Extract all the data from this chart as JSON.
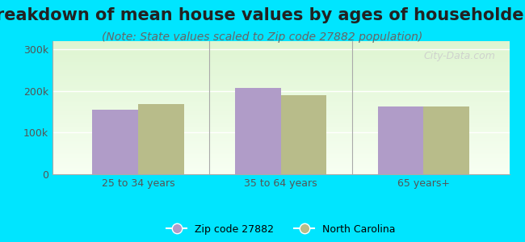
{
  "title": "Breakdown of mean house values by ages of householders",
  "subtitle": "(Note: State values scaled to Zip code 27882 population)",
  "categories": [
    "25 to 34 years",
    "35 to 64 years",
    "65 years+"
  ],
  "zip_values": [
    155000,
    207000,
    163000
  ],
  "nc_values": [
    168000,
    191000,
    162000
  ],
  "zip_color": "#b09cc8",
  "nc_color": "#b8bc8a",
  "ylim": [
    0,
    320000
  ],
  "yticks": [
    0,
    100000,
    200000,
    300000
  ],
  "ytick_labels": [
    "0",
    "100k",
    "200k",
    "300k"
  ],
  "figure_bg": "#00e5ff",
  "legend_zip": "Zip code 27882",
  "legend_nc": "North Carolina",
  "watermark": "City-Data.com",
  "title_fontsize": 15,
  "subtitle_fontsize": 10,
  "bar_width": 0.32
}
